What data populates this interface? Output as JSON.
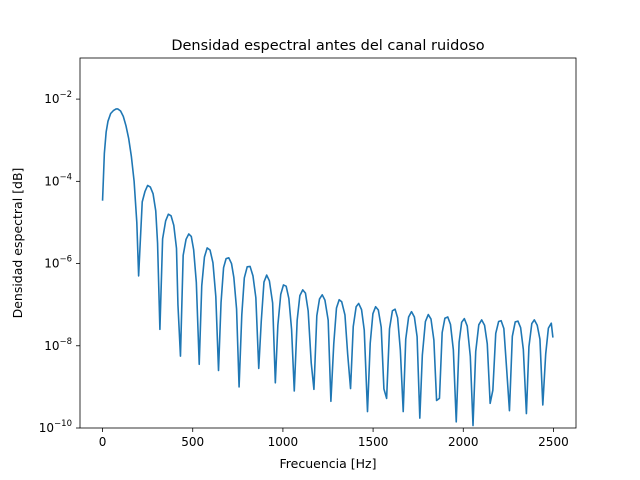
{
  "chart_data": {
    "type": "line",
    "title": "Densidad espectral antes del canal ruidoso",
    "xlabel": "Frecuencia [Hz]",
    "ylabel": "Densidad espectral [dB]",
    "xlim": [
      -125,
      2625
    ],
    "ylim_log10": [
      -10,
      -1
    ],
    "y_scale": "log",
    "grid": false,
    "x_ticks": [
      0,
      500,
      1000,
      1500,
      2000,
      2500
    ],
    "x_tick_labels": [
      "0",
      "500",
      "1000",
      "1500",
      "2000",
      "2500"
    ],
    "y_ticks": [
      {
        "base": "10",
        "exp": "−2",
        "log10": -2
      },
      {
        "base": "10",
        "exp": "−4",
        "log10": -4
      },
      {
        "base": "10",
        "exp": "−6",
        "log10": -6
      },
      {
        "base": "10",
        "exp": "−8",
        "log10": -8
      },
      {
        "base": "10",
        "exp": "−10",
        "log10": -10
      }
    ],
    "series": [
      {
        "color": "#1f77b4",
        "x": [
          0,
          5,
          10,
          20,
          30,
          45,
          60,
          75,
          85,
          100,
          115,
          130,
          145,
          160,
          175,
          190,
          200,
          210,
          220,
          235,
          250,
          265,
          280,
          295,
          305,
          318,
          333,
          350,
          365,
          380,
          395,
          410,
          418,
          432,
          447,
          463,
          478,
          492,
          505,
          520,
          536,
          550,
          565,
          580,
          596,
          612,
          628,
          643,
          657,
          671,
          685,
          700,
          715,
          728,
          743,
          757,
          772,
          786,
          802,
          818,
          834,
          850,
          866,
          880,
          895,
          910,
          925,
          943,
          958,
          972,
          988,
          1003,
          1018,
          1033,
          1048,
          1063,
          1079,
          1094,
          1110,
          1125,
          1140,
          1157,
          1172,
          1188,
          1203,
          1218,
          1233,
          1251,
          1266,
          1282,
          1297,
          1312,
          1326,
          1344,
          1359,
          1375,
          1390,
          1406,
          1420,
          1436,
          1451,
          1469,
          1484,
          1499,
          1514,
          1529,
          1545,
          1560,
          1575,
          1591,
          1607,
          1622,
          1636,
          1651,
          1667,
          1681,
          1697,
          1713,
          1729,
          1744,
          1759,
          1773,
          1790,
          1806,
          1821,
          1837,
          1852,
          1868,
          1883,
          1898,
          1914,
          1929,
          1945,
          1961,
          1977,
          1991,
          2006,
          2022,
          2039,
          2054,
          2069,
          2086,
          2102,
          2118,
          2133,
          2149,
          2164,
          2180,
          2196,
          2210,
          2225,
          2241,
          2256,
          2272,
          2288,
          2303,
          2318,
          2333,
          2350,
          2364,
          2380,
          2394,
          2410,
          2425,
          2441,
          2457,
          2472,
          2488,
          2497
        ],
        "y_log10": [
          -4.47,
          -3.9,
          -3.32,
          -2.8,
          -2.54,
          -2.35,
          -2.28,
          -2.24,
          -2.24,
          -2.29,
          -2.42,
          -2.65,
          -2.96,
          -3.4,
          -4.0,
          -5.0,
          -6.3,
          -5.4,
          -4.5,
          -4.25,
          -4.1,
          -4.14,
          -4.3,
          -4.72,
          -5.5,
          -7.6,
          -5.4,
          -4.96,
          -4.8,
          -4.84,
          -5.07,
          -5.63,
          -7.0,
          -8.25,
          -5.8,
          -5.41,
          -5.28,
          -5.34,
          -5.66,
          -6.46,
          -8.45,
          -6.54,
          -5.84,
          -5.62,
          -5.67,
          -5.98,
          -6.8,
          -8.6,
          -6.95,
          -6.1,
          -5.88,
          -5.86,
          -6.0,
          -6.34,
          -7.1,
          -9.0,
          -7.25,
          -6.35,
          -6.08,
          -6.07,
          -6.3,
          -6.83,
          -8.55,
          -7.4,
          -6.45,
          -6.28,
          -6.42,
          -6.96,
          -8.9,
          -7.5,
          -6.75,
          -6.52,
          -6.55,
          -6.85,
          -7.6,
          -9.1,
          -7.38,
          -6.78,
          -6.64,
          -6.72,
          -7.15,
          -8.42,
          -9.06,
          -7.27,
          -6.86,
          -6.76,
          -6.89,
          -7.38,
          -9.35,
          -7.95,
          -7.08,
          -6.88,
          -6.93,
          -7.25,
          -8.2,
          -9.04,
          -7.53,
          -7.05,
          -6.97,
          -7.12,
          -7.62,
          -9.6,
          -7.94,
          -7.22,
          -7.05,
          -7.13,
          -7.55,
          -9.05,
          -9.28,
          -7.59,
          -7.15,
          -7.11,
          -7.32,
          -8.1,
          -9.6,
          -7.84,
          -7.3,
          -7.17,
          -7.3,
          -7.78,
          -9.76,
          -8.23,
          -7.41,
          -7.24,
          -7.35,
          -7.86,
          -9.33,
          -9.28,
          -7.68,
          -7.33,
          -7.3,
          -7.48,
          -8.1,
          -9.85,
          -7.91,
          -7.43,
          -7.34,
          -7.52,
          -8.26,
          -9.94,
          -8.14,
          -7.49,
          -7.37,
          -7.5,
          -7.95,
          -9.4,
          -9.08,
          -7.7,
          -7.41,
          -7.39,
          -7.58,
          -8.6,
          -9.58,
          -7.77,
          -7.42,
          -7.4,
          -7.56,
          -8.09,
          -9.65,
          -8.02,
          -7.46,
          -7.37,
          -7.5,
          -7.84,
          -9.44,
          -8.2,
          -7.57,
          -7.45,
          -7.8
        ]
      }
    ]
  }
}
